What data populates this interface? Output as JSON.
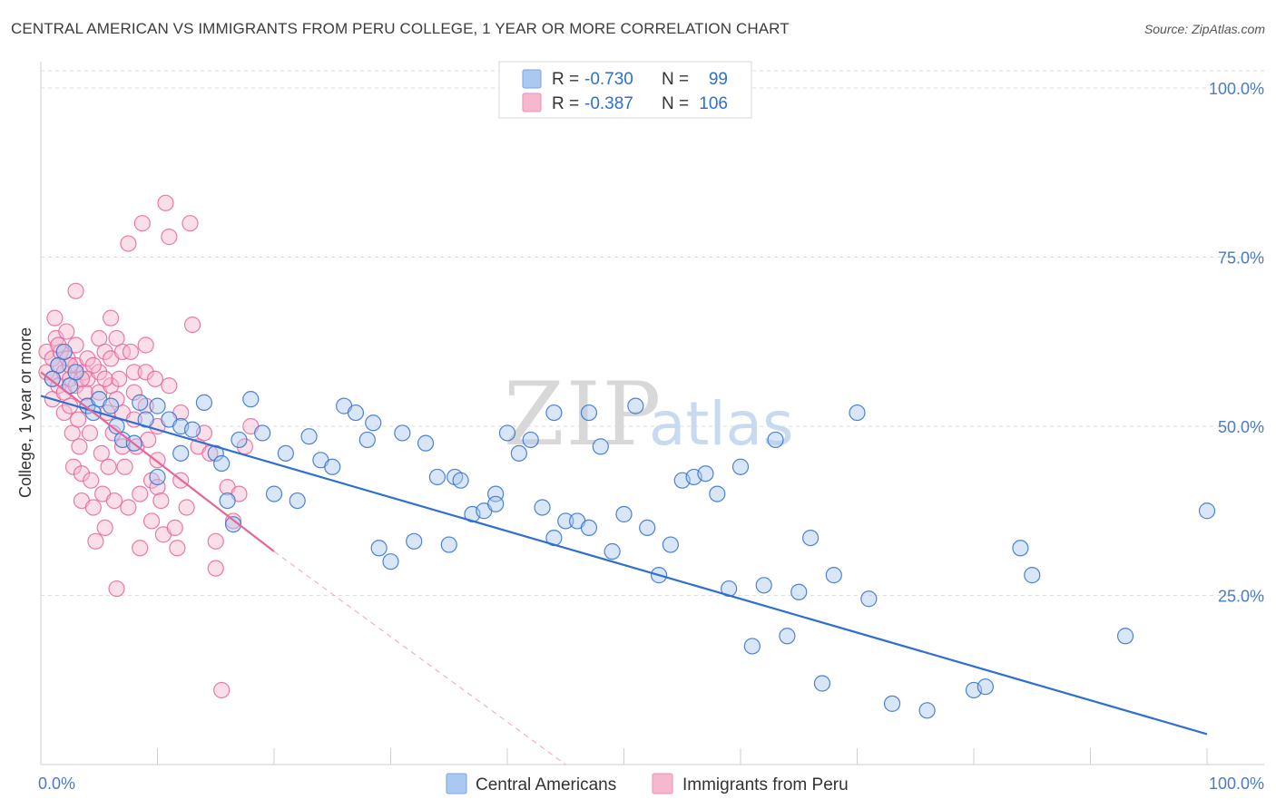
{
  "title": "CENTRAL AMERICAN VS IMMIGRANTS FROM PERU COLLEGE, 1 YEAR OR MORE CORRELATION CHART",
  "source": "Source: ZipAtlas.com",
  "watermark": {
    "zip": "ZIP",
    "atlas": "atlas"
  },
  "colors": {
    "blue": "#2f6fce",
    "blue_fill": "#aac8f0",
    "pink": "#e8649a",
    "pink_fill": "#f5b8cf",
    "grid": "#dddddd"
  },
  "legend": {
    "rows": [
      {
        "r_label": "R =",
        "r_value": "-0.730",
        "n_label": "N =",
        "n_value": "99"
      },
      {
        "r_label": "R =",
        "r_value": "-0.387",
        "n_label": "N =",
        "n_value": "106"
      }
    ]
  },
  "bottom_legend": [
    "Central Americans",
    "Immigrants from Peru"
  ],
  "chart_data": {
    "type": "scatter",
    "title": "CENTRAL AMERICAN VS IMMIGRANTS FROM PERU COLLEGE, 1 YEAR OR MORE CORRELATION CHART",
    "xlabel": "",
    "ylabel": "College, 1 year or more",
    "xlim": [
      0,
      100
    ],
    "ylim": [
      0,
      100
    ],
    "x_tick_labels": [
      "0.0%",
      "100.0%"
    ],
    "y_tick_labels": [
      "100.0%",
      "75.0%",
      "50.0%",
      "25.0%"
    ],
    "y_ticks": [
      100,
      75,
      50,
      25
    ],
    "grid": true,
    "legend_position": "top-center",
    "series": [
      {
        "name": "Central Americans",
        "r": -0.73,
        "n": 99,
        "trend": {
          "x0": 0,
          "y0": 54.5,
          "x1": 100,
          "y1": 4.5
        },
        "points": [
          [
            1.5,
            59
          ],
          [
            2,
            61
          ],
          [
            1,
            57
          ],
          [
            2.5,
            56
          ],
          [
            3,
            58
          ],
          [
            4,
            53
          ],
          [
            5,
            54
          ],
          [
            4.5,
            52
          ],
          [
            6,
            53
          ],
          [
            7,
            48
          ],
          [
            6.5,
            50
          ],
          [
            8,
            47.5
          ],
          [
            9,
            51
          ],
          [
            8.5,
            53.5
          ],
          [
            10,
            53
          ],
          [
            10,
            42.5
          ],
          [
            11,
            51
          ],
          [
            12,
            50
          ],
          [
            12,
            46
          ],
          [
            13,
            49.5
          ],
          [
            14,
            53.5
          ],
          [
            15,
            46
          ],
          [
            15.5,
            44.5
          ],
          [
            16,
            39
          ],
          [
            16.5,
            35.5
          ],
          [
            17,
            48
          ],
          [
            18,
            54
          ],
          [
            19,
            49
          ],
          [
            20,
            40
          ],
          [
            21,
            46
          ],
          [
            22,
            39
          ],
          [
            23,
            48.5
          ],
          [
            24,
            45
          ],
          [
            25,
            44
          ],
          [
            26,
            53
          ],
          [
            27,
            52
          ],
          [
            28,
            48
          ],
          [
            28.5,
            50.5
          ],
          [
            29,
            32
          ],
          [
            30,
            30
          ],
          [
            31,
            49
          ],
          [
            32,
            33
          ],
          [
            33,
            47.5
          ],
          [
            34,
            42.5
          ],
          [
            35,
            32.5
          ],
          [
            35.5,
            42.5
          ],
          [
            36,
            42
          ],
          [
            37,
            37
          ],
          [
            38,
            37.5
          ],
          [
            39,
            40
          ],
          [
            39,
            38.5
          ],
          [
            40,
            49
          ],
          [
            41,
            46
          ],
          [
            42,
            48
          ],
          [
            43,
            38
          ],
          [
            44,
            33.5
          ],
          [
            44,
            52
          ],
          [
            45,
            36
          ],
          [
            46,
            36
          ],
          [
            47,
            52
          ],
          [
            47,
            35
          ],
          [
            48,
            47
          ],
          [
            49,
            31.5
          ],
          [
            50,
            37
          ],
          [
            51,
            53
          ],
          [
            52,
            35
          ],
          [
            53,
            28
          ],
          [
            54,
            32.5
          ],
          [
            55,
            42
          ],
          [
            56,
            42.5
          ],
          [
            57,
            43
          ],
          [
            58,
            40
          ],
          [
            59,
            26
          ],
          [
            60,
            44
          ],
          [
            61,
            17.5
          ],
          [
            62,
            26.5
          ],
          [
            63,
            48
          ],
          [
            64,
            19
          ],
          [
            65,
            25.5
          ],
          [
            66,
            33.5
          ],
          [
            67,
            12
          ],
          [
            68,
            28
          ],
          [
            70,
            52
          ],
          [
            71,
            24.5
          ],
          [
            73,
            9
          ],
          [
            76,
            8
          ],
          [
            80,
            11
          ],
          [
            81,
            11.5
          ],
          [
            84,
            32
          ],
          [
            85,
            28
          ],
          [
            93,
            19
          ],
          [
            100,
            37.5
          ]
        ]
      },
      {
        "name": "Immigrants from Peru",
        "r": -0.387,
        "n": 106,
        "trend": {
          "x0": 0,
          "y0": 58,
          "x1": 20,
          "y1": 31.5,
          "dash_x1": 45,
          "dash_y1": 0
        },
        "points": [
          [
            0.5,
            61
          ],
          [
            0.5,
            58
          ],
          [
            1,
            60
          ],
          [
            1,
            57
          ],
          [
            1,
            54
          ],
          [
            1.2,
            66
          ],
          [
            1.3,
            63
          ],
          [
            1.5,
            59
          ],
          [
            1.5,
            56
          ],
          [
            1.7,
            61
          ],
          [
            2,
            58
          ],
          [
            2,
            55
          ],
          [
            2,
            52
          ],
          [
            2.2,
            64
          ],
          [
            2.3,
            60
          ],
          [
            2.5,
            57
          ],
          [
            2.5,
            53
          ],
          [
            2.7,
            49
          ],
          [
            2.8,
            44
          ],
          [
            3,
            70
          ],
          [
            3,
            62
          ],
          [
            3,
            59
          ],
          [
            3,
            56
          ],
          [
            3.2,
            51
          ],
          [
            3.3,
            47
          ],
          [
            3.5,
            43
          ],
          [
            3.5,
            39
          ],
          [
            3.7,
            58
          ],
          [
            3.8,
            55
          ],
          [
            4,
            60
          ],
          [
            4,
            57
          ],
          [
            4,
            53
          ],
          [
            4.2,
            49
          ],
          [
            4.3,
            42
          ],
          [
            4.5,
            38
          ],
          [
            4.7,
            33
          ],
          [
            5,
            63
          ],
          [
            5,
            58
          ],
          [
            5,
            55
          ],
          [
            5.2,
            46
          ],
          [
            5.3,
            40
          ],
          [
            5.5,
            35
          ],
          [
            5.5,
            61
          ],
          [
            5.7,
            52
          ],
          [
            5.8,
            44
          ],
          [
            6,
            66
          ],
          [
            6,
            60
          ],
          [
            6,
            56
          ],
          [
            6.2,
            49
          ],
          [
            6.3,
            39
          ],
          [
            6.5,
            26
          ],
          [
            6.5,
            63
          ],
          [
            6.7,
            57
          ],
          [
            7,
            61
          ],
          [
            7,
            52
          ],
          [
            7,
            47
          ],
          [
            7.2,
            44
          ],
          [
            7.5,
            38
          ],
          [
            7.5,
            77
          ],
          [
            7.7,
            61
          ],
          [
            8,
            58
          ],
          [
            8,
            55
          ],
          [
            8,
            51
          ],
          [
            8.2,
            47
          ],
          [
            8.5,
            40
          ],
          [
            8.5,
            32
          ],
          [
            8.7,
            80
          ],
          [
            9,
            62
          ],
          [
            9,
            58
          ],
          [
            9,
            53
          ],
          [
            9.2,
            48
          ],
          [
            9.5,
            42
          ],
          [
            9.5,
            36
          ],
          [
            9.8,
            57
          ],
          [
            10,
            50
          ],
          [
            10,
            45
          ],
          [
            10,
            41
          ],
          [
            10.3,
            39
          ],
          [
            10.5,
            34
          ],
          [
            10.7,
            83
          ],
          [
            11,
            56
          ],
          [
            11,
            78
          ],
          [
            11.5,
            35
          ],
          [
            11.7,
            32
          ],
          [
            12,
            52
          ],
          [
            12,
            42
          ],
          [
            12.5,
            38
          ],
          [
            12.8,
            80
          ],
          [
            13,
            65
          ],
          [
            13.5,
            47
          ],
          [
            14,
            49
          ],
          [
            14.5,
            46
          ],
          [
            15,
            33
          ],
          [
            15,
            29
          ],
          [
            15.5,
            11
          ],
          [
            16,
            41
          ],
          [
            16.5,
            36
          ],
          [
            17,
            40
          ],
          [
            17.5,
            47
          ],
          [
            18,
            50
          ],
          [
            1.5,
            62
          ],
          [
            2.5,
            59
          ],
          [
            3.5,
            57
          ],
          [
            4.5,
            59
          ],
          [
            5.5,
            57
          ],
          [
            6.5,
            54
          ]
        ]
      }
    ]
  }
}
